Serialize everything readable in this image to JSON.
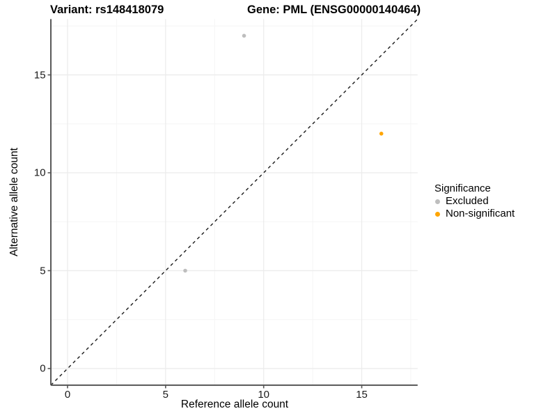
{
  "chart_data": {
    "type": "scatter",
    "title_left": "Variant: rs148418079",
    "title_right": "Gene: PML (ENSG00000140464)",
    "xlabel": "Reference allele count",
    "ylabel": "Alternative allele count",
    "x_ticks": [
      0,
      5,
      10,
      15
    ],
    "y_ticks": [
      0,
      5,
      10,
      15
    ],
    "x_minor_ticks": [
      2.5,
      7.5,
      12.5,
      17.5
    ],
    "y_minor_ticks": [
      2.5,
      7.5,
      12.5,
      17.5
    ],
    "xlim": [
      -0.85,
      17.85
    ],
    "ylim": [
      -0.85,
      17.85
    ],
    "grid": true,
    "legend_position": "right",
    "identity_line": {
      "slope": 1,
      "intercept": 0,
      "style": "dashed",
      "color": "#1a1a1a"
    },
    "series": [
      {
        "name": "Excluded",
        "color": "#BEBEBE",
        "points": [
          {
            "x": 6,
            "y": 5
          },
          {
            "x": 9,
            "y": 17
          }
        ]
      },
      {
        "name": "Non-significant",
        "color": "#FFA500",
        "points": [
          {
            "x": 16,
            "y": 12
          }
        ]
      }
    ],
    "legend": {
      "title": "Significance"
    }
  },
  "style": {
    "grid_major_color": "#EBEBEB",
    "grid_minor_color": "#F5F5F5",
    "axis_line_color": "#565656",
    "point_radius": 2.8
  }
}
